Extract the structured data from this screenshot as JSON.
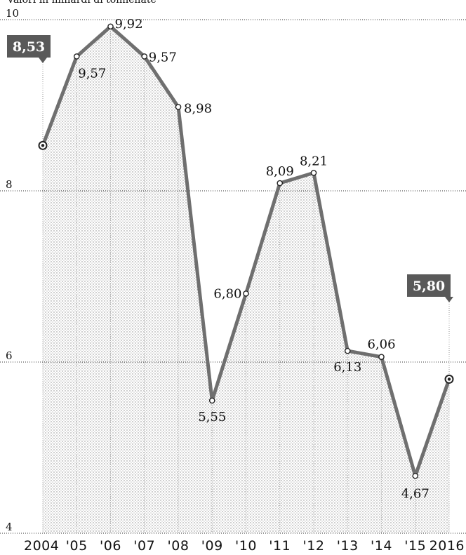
{
  "chart_data": {
    "type": "area",
    "title": "",
    "subtitle": "Valori in miliardi di tonnellate",
    "xlabel": "",
    "ylabel": "",
    "categories": [
      "2004",
      "'05",
      "'06",
      "'07",
      "'08",
      "'09",
      "'10",
      "'11",
      "'12",
      "'13",
      "'14",
      "'15",
      "2016"
    ],
    "series": [
      {
        "values": [
          8.53,
          9.57,
          9.92,
          9.57,
          8.98,
          5.55,
          6.8,
          8.09,
          8.21,
          6.13,
          6.06,
          4.67,
          5.8
        ]
      }
    ],
    "data_labels": [
      "",
      "9,57",
      "9,92",
      "9,57",
      "8,98",
      "5,55",
      "6,80",
      "8,09",
      "8,21",
      "6,13",
      "6,06",
      "4,67",
      ""
    ],
    "callouts": [
      {
        "index": 0,
        "label": "8,53"
      },
      {
        "index": 12,
        "label": "5,80"
      }
    ],
    "yticks": [
      "4",
      "6",
      "8",
      "10"
    ],
    "ylim": [
      4,
      10
    ],
    "grid": true,
    "legend": "none",
    "colors": {
      "line": "#6f6f6f",
      "area": "#b8b8b8",
      "callout": "#595959",
      "grid": "#333333",
      "text": "#111111"
    }
  }
}
